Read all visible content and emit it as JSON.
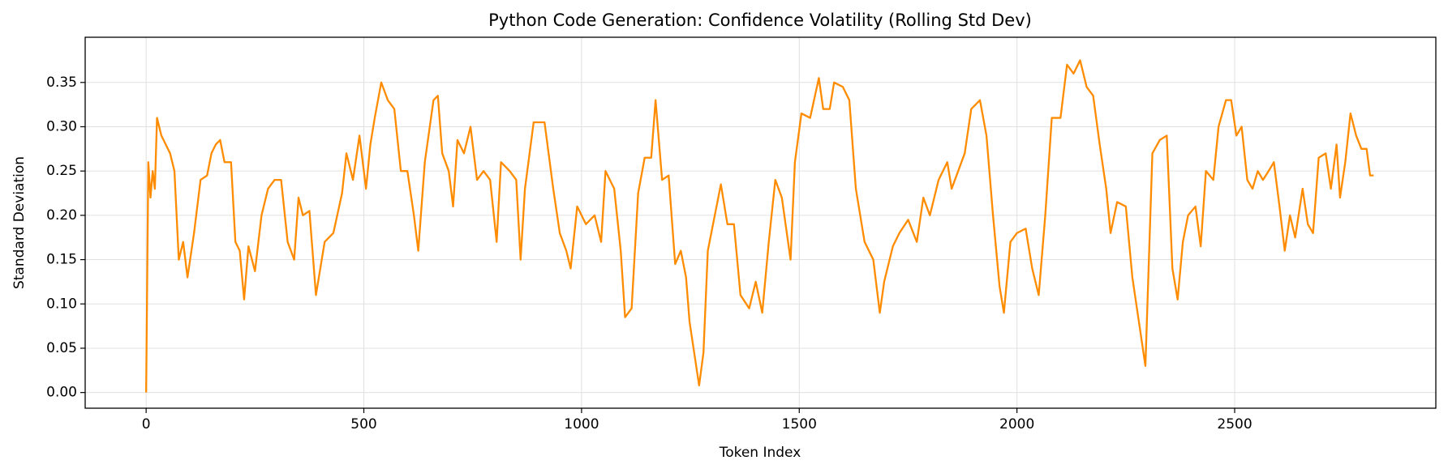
{
  "chart_data": {
    "type": "line",
    "title": "Python Code Generation: Confidence Volatility (Rolling Std Dev)",
    "xlabel": "Token Index",
    "ylabel": "Standard Deviation",
    "x": [
      0,
      5,
      10,
      15,
      20,
      25,
      35,
      45,
      55,
      65,
      75,
      85,
      95,
      110,
      125,
      140,
      150,
      160,
      170,
      180,
      195,
      205,
      215,
      225,
      235,
      250,
      265,
      280,
      295,
      310,
      325,
      340,
      350,
      360,
      375,
      390,
      410,
      430,
      450,
      460,
      475,
      490,
      505,
      515,
      525,
      540,
      555,
      570,
      585,
      600,
      615,
      625,
      640,
      660,
      670,
      680,
      695,
      705,
      715,
      730,
      745,
      760,
      775,
      790,
      805,
      815,
      835,
      850,
      860,
      870,
      890,
      915,
      935,
      950,
      965,
      975,
      990,
      1010,
      1030,
      1045,
      1055,
      1075,
      1090,
      1100,
      1115,
      1130,
      1145,
      1160,
      1170,
      1185,
      1200,
      1215,
      1228,
      1240,
      1248,
      1270,
      1280,
      1290,
      1300,
      1320,
      1335,
      1350,
      1365,
      1385,
      1400,
      1415,
      1430,
      1445,
      1460,
      1480,
      1490,
      1505,
      1525,
      1545,
      1555,
      1570,
      1580,
      1600,
      1615,
      1630,
      1650,
      1670,
      1685,
      1695,
      1715,
      1730,
      1750,
      1770,
      1785,
      1800,
      1820,
      1840,
      1850,
      1865,
      1880,
      1895,
      1915,
      1930,
      1945,
      1960,
      1970,
      1985,
      2000,
      2020,
      2035,
      2050,
      2065,
      2080,
      2100,
      2115,
      2130,
      2145,
      2160,
      2175,
      2190,
      2205,
      2215,
      2230,
      2250,
      2265,
      2280,
      2295,
      2311,
      2328,
      2344,
      2357,
      2369,
      2381,
      2393,
      2410,
      2422,
      2434,
      2451,
      2463,
      2480,
      2492,
      2504,
      2516,
      2529,
      2541,
      2553,
      2565,
      2578,
      2590,
      2603,
      2615,
      2627,
      2639,
      2656,
      2668,
      2680,
      2693,
      2709,
      2721,
      2734,
      2742,
      2754,
      2766,
      2779,
      2791,
      2803,
      2811,
      2819
    ],
    "series": [
      {
        "name": "Rolling Std Dev",
        "color": "#ff8c00",
        "values": [
          0,
          0.26,
          0.22,
          0.25,
          0.23,
          0.31,
          0.29,
          0.28,
          0.27,
          0.25,
          0.15,
          0.17,
          0.13,
          0.18,
          0.24,
          0.245,
          0.27,
          0.28,
          0.285,
          0.26,
          0.26,
          0.17,
          0.16,
          0.105,
          0.165,
          0.137,
          0.2,
          0.23,
          0.24,
          0.24,
          0.17,
          0.15,
          0.22,
          0.2,
          0.205,
          0.11,
          0.17,
          0.18,
          0.225,
          0.27,
          0.24,
          0.29,
          0.23,
          0.28,
          0.31,
          0.35,
          0.33,
          0.32,
          0.25,
          0.25,
          0.2,
          0.16,
          0.26,
          0.33,
          0.335,
          0.27,
          0.25,
          0.21,
          0.285,
          0.27,
          0.3,
          0.24,
          0.25,
          0.24,
          0.17,
          0.26,
          0.25,
          0.24,
          0.15,
          0.23,
          0.305,
          0.305,
          0.23,
          0.18,
          0.16,
          0.14,
          0.21,
          0.19,
          0.2,
          0.17,
          0.25,
          0.23,
          0.16,
          0.085,
          0.095,
          0.225,
          0.265,
          0.265,
          0.33,
          0.24,
          0.245,
          0.145,
          0.16,
          0.13,
          0.08,
          0.008,
          0.045,
          0.16,
          0.185,
          0.235,
          0.19,
          0.19,
          0.11,
          0.095,
          0.125,
          0.09,
          0.17,
          0.24,
          0.22,
          0.15,
          0.26,
          0.315,
          0.31,
          0.355,
          0.32,
          0.32,
          0.35,
          0.345,
          0.33,
          0.23,
          0.17,
          0.15,
          0.09,
          0.125,
          0.165,
          0.18,
          0.195,
          0.17,
          0.22,
          0.2,
          0.24,
          0.26,
          0.23,
          0.25,
          0.27,
          0.32,
          0.33,
          0.29,
          0.2,
          0.12,
          0.09,
          0.17,
          0.18,
          0.185,
          0.14,
          0.11,
          0.2,
          0.31,
          0.31,
          0.37,
          0.36,
          0.375,
          0.345,
          0.335,
          0.28,
          0.23,
          0.18,
          0.215,
          0.21,
          0.13,
          0.08,
          0.03,
          0.27,
          0.285,
          0.29,
          0.14,
          0.105,
          0.17,
          0.2,
          0.21,
          0.165,
          0.25,
          0.24,
          0.3,
          0.33,
          0.33,
          0.29,
          0.3,
          0.24,
          0.23,
          0.25,
          0.24,
          0.25,
          0.26,
          0.21,
          0.16,
          0.2,
          0.175,
          0.23,
          0.19,
          0.18,
          0.265,
          0.27,
          0.23,
          0.28,
          0.22,
          0.26,
          0.315,
          0.29,
          0.275,
          0.275,
          0.245,
          0.245
        ]
      }
    ],
    "xlim": [
      -140,
      2962
    ],
    "xticks": [
      0,
      500,
      1000,
      1500,
      2000,
      2500
    ],
    "ylim": [
      -0.0177,
      0.401
    ],
    "yticks": [
      {
        "value": 0,
        "label": "0.00"
      },
      {
        "value": 0.05,
        "label": "0.05"
      },
      {
        "value": 0.1,
        "label": "0.10"
      },
      {
        "value": 0.15,
        "label": "0.15"
      },
      {
        "value": 0.2,
        "label": "0.20"
      },
      {
        "value": 0.25,
        "label": "0.25"
      },
      {
        "value": 0.3,
        "label": "0.30"
      },
      {
        "value": 0.35,
        "label": "0.35"
      }
    ],
    "grid": true
  }
}
